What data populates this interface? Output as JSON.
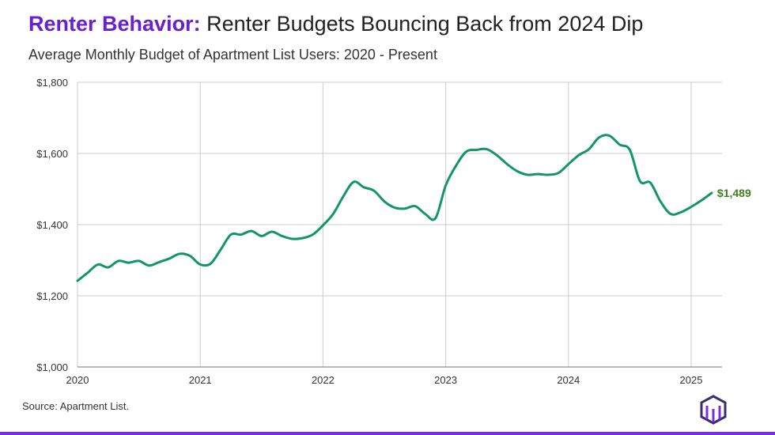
{
  "header": {
    "title_lead": "Renter Behavior:",
    "title_rest": " Renter Budgets Bouncing Back from 2024 Dip",
    "subtitle": "Average Monthly Budget of Apartment List Users: 2020 - Present"
  },
  "footer": {
    "source": "Source: Apartment List."
  },
  "colors": {
    "line": "#13956a",
    "end_label": "#3f7f1e",
    "title_accent": "#6a1fd0",
    "grid": "#cccccc"
  },
  "icons": {
    "logo": "apartment-list-logo-icon"
  },
  "chart_data": {
    "type": "line",
    "title": "Average Monthly Budget of Apartment List Users: 2020 - Present",
    "xlabel": "",
    "ylabel": "",
    "xlim": [
      2020,
      2025.25
    ],
    "ylim": [
      1000,
      1800
    ],
    "y_ticks": [
      1000,
      1200,
      1400,
      1600,
      1800
    ],
    "y_tick_labels": [
      "$1,000",
      "$1,200",
      "$1,400",
      "$1,600",
      "$1,800"
    ],
    "x_ticks": [
      2020,
      2021,
      2022,
      2023,
      2024,
      2025
    ],
    "x_tick_labels": [
      "2020",
      "2021",
      "2022",
      "2023",
      "2024",
      "2025"
    ],
    "grid": "vertical at each year, horizontal at each y tick",
    "end_label": "$1,489",
    "series": [
      {
        "x": [
          2020.0,
          2020.083,
          2020.167,
          2020.25,
          2020.333,
          2020.417,
          2020.5,
          2020.583,
          2020.667,
          2020.75,
          2020.833,
          2020.917,
          2021.0,
          2021.083,
          2021.167,
          2021.25,
          2021.333,
          2021.417,
          2021.5,
          2021.583,
          2021.667,
          2021.75,
          2021.833,
          2021.917,
          2022.0,
          2022.083,
          2022.167,
          2022.25,
          2022.333,
          2022.417,
          2022.5,
          2022.583,
          2022.667,
          2022.75,
          2022.833,
          2022.917,
          2023.0,
          2023.083,
          2023.167,
          2023.25,
          2023.333,
          2023.417,
          2023.5,
          2023.583,
          2023.667,
          2023.75,
          2023.833,
          2023.917,
          2024.0,
          2024.083,
          2024.167,
          2024.25,
          2024.333,
          2024.417,
          2024.5,
          2024.583,
          2024.667,
          2024.75,
          2024.833,
          2024.917,
          2025.0,
          2025.083,
          2025.167
        ],
        "values": [
          1242,
          1265,
          1288,
          1280,
          1298,
          1293,
          1298,
          1285,
          1295,
          1305,
          1318,
          1312,
          1288,
          1290,
          1330,
          1372,
          1372,
          1382,
          1368,
          1380,
          1368,
          1360,
          1362,
          1372,
          1398,
          1430,
          1480,
          1520,
          1505,
          1495,
          1465,
          1448,
          1445,
          1452,
          1430,
          1418,
          1510,
          1565,
          1605,
          1610,
          1612,
          1595,
          1570,
          1550,
          1540,
          1542,
          1540,
          1545,
          1570,
          1595,
          1612,
          1645,
          1650,
          1625,
          1610,
          1522,
          1518,
          1465,
          1430,
          1435,
          1450,
          1468,
          1489
        ]
      }
    ]
  }
}
